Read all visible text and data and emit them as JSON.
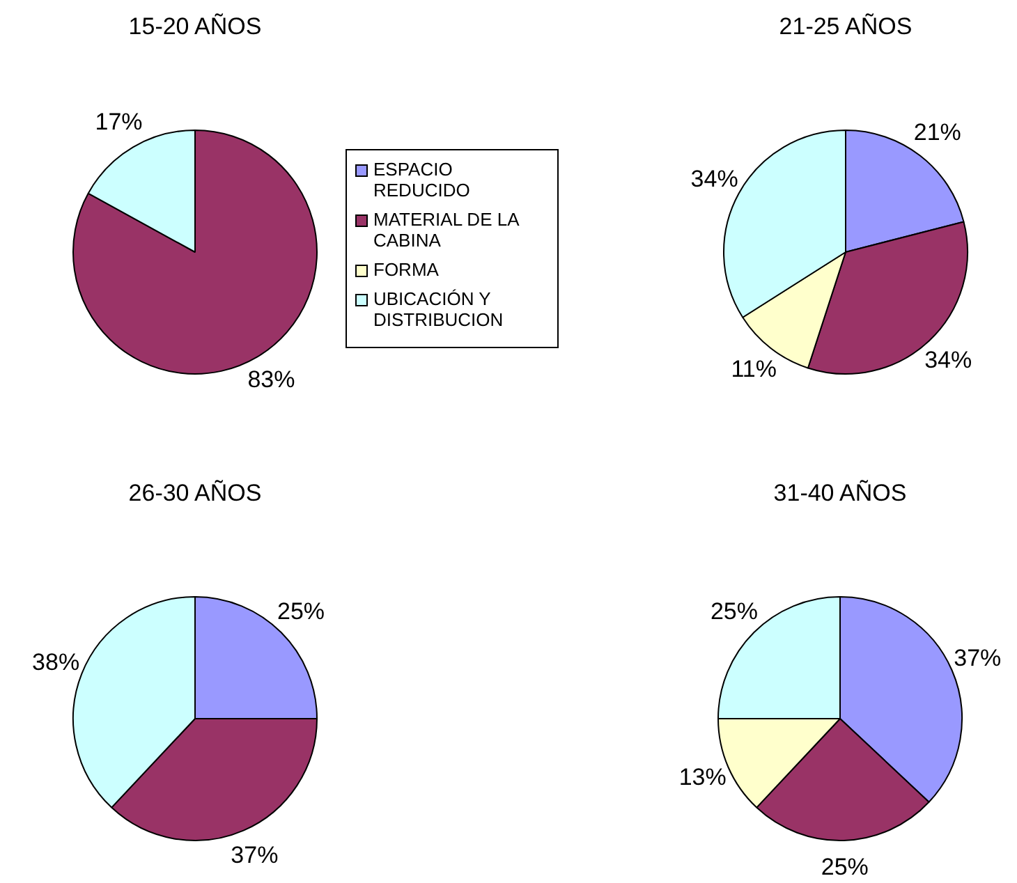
{
  "chart_data": [
    {
      "type": "pie",
      "title": "15-20 AÑOS",
      "categories": [
        "ESPACIO REDUCIDO",
        "MATERIAL DE LA CABINA",
        "FORMA",
        "UBICACIÓN Y DISTRIBUCION"
      ],
      "values": [
        0,
        83,
        0,
        17
      ],
      "value_labels": [
        null,
        "83%",
        null,
        "17%"
      ],
      "colors": [
        "#9999ff",
        "#993366",
        "#ffffcc",
        "#ccffff"
      ],
      "legend": "right"
    },
    {
      "type": "pie",
      "title": "21-25 AÑOS",
      "categories": [
        null,
        null,
        null,
        null
      ],
      "values": [
        21,
        34,
        11,
        34
      ],
      "value_labels": [
        "21%",
        "34%",
        "11%",
        "34%"
      ],
      "colors": [
        "#9999ff",
        "#993366",
        "#ffffcc",
        "#ccffff"
      ]
    },
    {
      "type": "pie",
      "title": "26-30 AÑOS",
      "categories": [
        null,
        null,
        null,
        null
      ],
      "values": [
        25,
        37,
        0,
        38
      ],
      "value_labels": [
        "25%",
        "37%",
        null,
        "38%"
      ],
      "colors": [
        "#9999ff",
        "#993366",
        "#ffffcc",
        "#ccffff"
      ]
    },
    {
      "type": "pie",
      "title": "31-40 AÑOS",
      "categories": [
        null,
        null,
        null,
        null
      ],
      "values": [
        37,
        25,
        13,
        25
      ],
      "value_labels": [
        "37%",
        "25%",
        "13%",
        "25%"
      ],
      "colors": [
        "#9999ff",
        "#993366",
        "#ffffcc",
        "#ccffff"
      ]
    }
  ]
}
